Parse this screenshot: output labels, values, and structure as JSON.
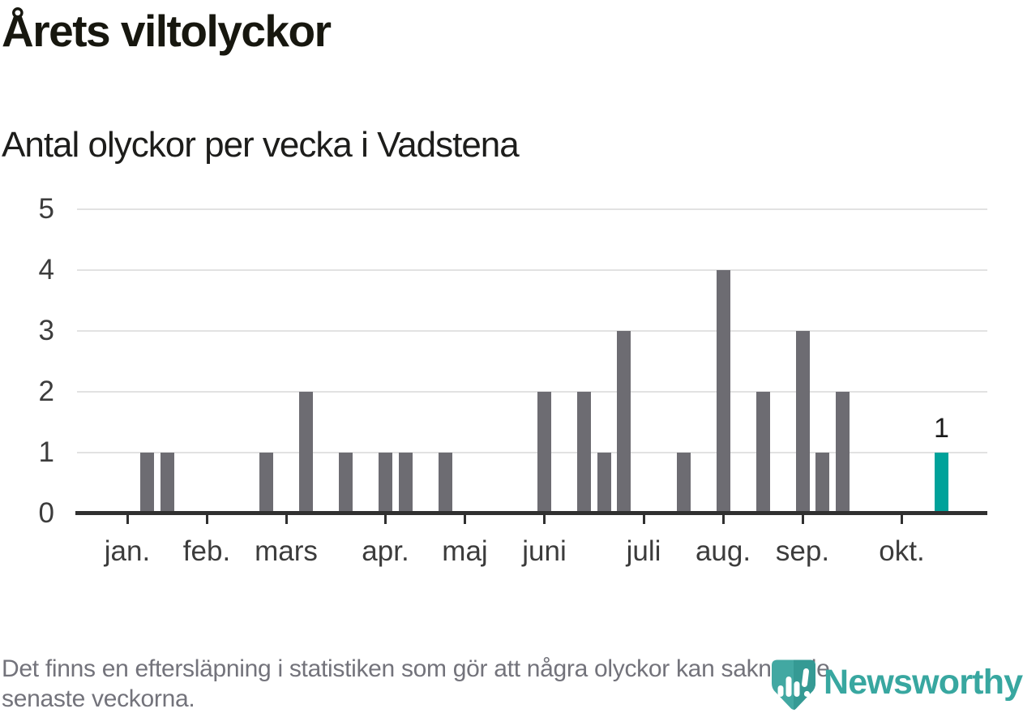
{
  "title": "Årets viltolyckor",
  "subtitle": "Antal olyckor per vecka i Vadstena",
  "footer": {
    "line1": "Det finns en eftersläpning i statistiken som gör att några olyckor kan saknas de",
    "line2": "senaste veckorna."
  },
  "logo": {
    "text": "Newsworthy",
    "icon": "newsworthy-badge-icon",
    "teal": "#42a8a2",
    "teal_dark": "#359a94",
    "text_color": "#38a7a0"
  },
  "colors": {
    "background": "#ffffff",
    "title": "#17170f",
    "axis_text": "#3c3c3c",
    "gridline": "#e2e2e2",
    "axis_line": "#303030",
    "footer_text": "#73737b"
  },
  "chart_data": {
    "type": "bar",
    "title": "Årets viltolyckor",
    "subtitle": "Antal olyckor per vecka i Vadstena",
    "xlabel": "",
    "ylabel": "",
    "x_unit": "ISO week number",
    "ylim": [
      0,
      5
    ],
    "yticks": [
      0,
      1,
      2,
      3,
      4,
      5
    ],
    "grid": "horizontal",
    "legend": "none",
    "bar_color": "#6d6c72",
    "highlight_color": "#00a29a",
    "axis_week_range": [
      1,
      44
    ],
    "bars": [
      {
        "week": 2,
        "value": 1
      },
      {
        "week": 3,
        "value": 1
      },
      {
        "week": 8,
        "value": 1
      },
      {
        "week": 10,
        "value": 2
      },
      {
        "week": 12,
        "value": 1
      },
      {
        "week": 14,
        "value": 1
      },
      {
        "week": 15,
        "value": 1
      },
      {
        "week": 17,
        "value": 1
      },
      {
        "week": 22,
        "value": 2
      },
      {
        "week": 24,
        "value": 2
      },
      {
        "week": 25,
        "value": 1
      },
      {
        "week": 26,
        "value": 3
      },
      {
        "week": 29,
        "value": 1
      },
      {
        "week": 31,
        "value": 4
      },
      {
        "week": 33,
        "value": 2
      },
      {
        "week": 35,
        "value": 3
      },
      {
        "week": 36,
        "value": 1
      },
      {
        "week": 37,
        "value": 2
      },
      {
        "week": 42,
        "value": 1,
        "highlight": true
      }
    ],
    "month_ticks": [
      {
        "label": "jan.",
        "week": 1
      },
      {
        "label": "feb.",
        "week": 5
      },
      {
        "label": "mars",
        "week": 9
      },
      {
        "label": "apr.",
        "week": 14
      },
      {
        "label": "maj",
        "week": 18
      },
      {
        "label": "juni",
        "week": 22
      },
      {
        "label": "juli",
        "week": 27
      },
      {
        "label": "aug.",
        "week": 31
      },
      {
        "label": "sep.",
        "week": 35
      },
      {
        "label": "okt.",
        "week": 40
      }
    ],
    "annotation": {
      "week": 42,
      "text": "1"
    }
  }
}
